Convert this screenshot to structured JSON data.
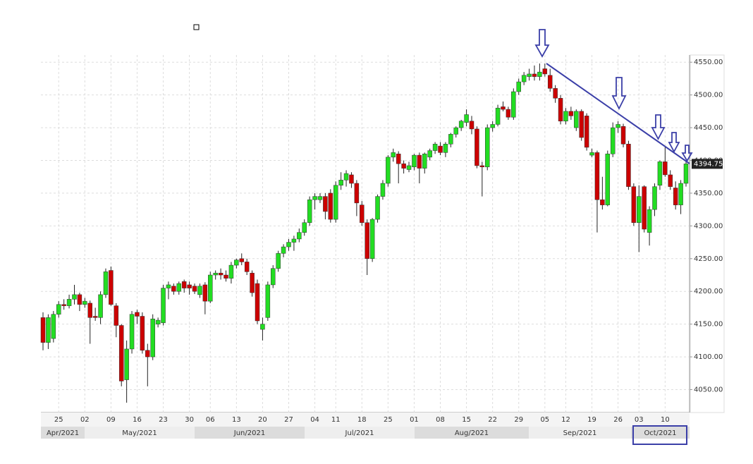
{
  "chart_data": {
    "type": "candlestick",
    "categories": [
      null,
      null,
      null,
      "25",
      null,
      null,
      null,
      null,
      "02",
      null,
      null,
      null,
      null,
      "09",
      null,
      null,
      null,
      null,
      "16",
      null,
      null,
      null,
      null,
      "23",
      null,
      null,
      null,
      null,
      "30",
      null,
      null,
      null,
      "06",
      null,
      null,
      null,
      null,
      "13",
      null,
      null,
      null,
      null,
      "20",
      null,
      null,
      null,
      null,
      "27",
      null,
      null,
      null,
      null,
      "04",
      null,
      null,
      null,
      "11",
      null,
      null,
      null,
      null,
      "18",
      null,
      null,
      null,
      null,
      "25",
      null,
      null,
      null,
      null,
      "01",
      null,
      null,
      null,
      null,
      "08",
      null,
      null,
      null,
      null,
      "15",
      null,
      null,
      null,
      null,
      "22",
      null,
      null,
      null,
      null,
      "29",
      null,
      null,
      null,
      null,
      "05",
      null,
      null,
      null,
      "12",
      null,
      null,
      null,
      null,
      "19",
      null,
      null,
      null,
      null,
      "26",
      null,
      null,
      null,
      "03",
      null,
      null,
      null,
      null,
      "10",
      null,
      null,
      null,
      null
    ],
    "months": [
      "Apr/2021",
      "May/2021",
      "Jun/2021",
      "Jul/2021",
      "Aug/2021",
      "Sep/2021",
      "Oct/2021"
    ],
    "ohlc": [
      [
        4160,
        4168,
        4110,
        4122
      ],
      [
        4122,
        4165,
        4112,
        4160
      ],
      [
        4128,
        4170,
        4122,
        4165
      ],
      [
        4165,
        4185,
        4160,
        4180
      ],
      [
        4180,
        4188,
        4172,
        4178
      ],
      [
        4178,
        4195,
        4174,
        4188
      ],
      [
        4188,
        4210,
        4180,
        4195
      ],
      [
        4195,
        4198,
        4170,
        4180
      ],
      [
        4180,
        4190,
        4175,
        4185
      ],
      [
        4182,
        4186,
        4120,
        4160
      ],
      [
        4162,
        4175,
        4155,
        4160
      ],
      [
        4160,
        4200,
        4150,
        4195
      ],
      [
        4195,
        4235,
        4190,
        4230
      ],
      [
        4232,
        4238,
        4178,
        4180
      ],
      [
        4178,
        4182,
        4130,
        4148
      ],
      [
        4148,
        4150,
        4055,
        4063
      ],
      [
        4065,
        4125,
        4030,
        4112
      ],
      [
        4112,
        4170,
        4105,
        4165
      ],
      [
        4168,
        4172,
        4150,
        4162
      ],
      [
        4162,
        4168,
        4105,
        4110
      ],
      [
        4110,
        4120,
        4055,
        4100
      ],
      [
        4100,
        4165,
        4095,
        4158
      ],
      [
        4150,
        4160,
        4145,
        4156
      ],
      [
        4152,
        4210,
        4148,
        4205
      ],
      [
        4205,
        4215,
        4188,
        4210
      ],
      [
        4208,
        4212,
        4195,
        4200
      ],
      [
        4200,
        4215,
        4195,
        4212
      ],
      [
        4215,
        4218,
        4198,
        4205
      ],
      [
        4210,
        4215,
        4195,
        4205
      ],
      [
        4208,
        4212,
        4196,
        4200
      ],
      [
        4195,
        4212,
        4190,
        4208
      ],
      [
        4210,
        4214,
        4165,
        4185
      ],
      [
        4185,
        4230,
        4182,
        4225
      ],
      [
        4225,
        4232,
        4218,
        4228
      ],
      [
        4228,
        4235,
        4218,
        4225
      ],
      [
        4225,
        4232,
        4215,
        4220
      ],
      [
        4220,
        4245,
        4212,
        4240
      ],
      [
        4240,
        4250,
        4235,
        4248
      ],
      [
        4250,
        4258,
        4240,
        4245
      ],
      [
        4245,
        4250,
        4225,
        4230
      ],
      [
        4228,
        4232,
        4192,
        4198
      ],
      [
        4212,
        4218,
        4150,
        4155
      ],
      [
        4142,
        4160,
        4125,
        4150
      ],
      [
        4160,
        4215,
        4155,
        4210
      ],
      [
        4210,
        4240,
        4205,
        4235
      ],
      [
        4235,
        4262,
        4230,
        4258
      ],
      [
        4258,
        4272,
        4252,
        4268
      ],
      [
        4268,
        4280,
        4262,
        4275
      ],
      [
        4275,
        4285,
        4262,
        4280
      ],
      [
        4280,
        4296,
        4275,
        4290
      ],
      [
        4290,
        4310,
        4285,
        4305
      ],
      [
        4305,
        4345,
        4300,
        4340
      ],
      [
        4340,
        4350,
        4325,
        4345
      ],
      [
        4340,
        4350,
        4335,
        4345
      ],
      [
        4345,
        4350,
        4310,
        4322
      ],
      [
        4350,
        4356,
        4305,
        4310
      ],
      [
        4310,
        4368,
        4305,
        4362
      ],
      [
        4362,
        4382,
        4355,
        4370
      ],
      [
        4370,
        4385,
        4360,
        4380
      ],
      [
        4378,
        4382,
        4358,
        4365
      ],
      [
        4365,
        4370,
        4315,
        4335
      ],
      [
        4332,
        4338,
        4300,
        4305
      ],
      [
        4305,
        4310,
        4225,
        4250
      ],
      [
        4250,
        4312,
        4245,
        4310
      ],
      [
        4310,
        4348,
        4305,
        4345
      ],
      [
        4345,
        4370,
        4340,
        4365
      ],
      [
        4365,
        4408,
        4360,
        4405
      ],
      [
        4405,
        4418,
        4398,
        4412
      ],
      [
        4410,
        4414,
        4365,
        4395
      ],
      [
        4395,
        4400,
        4380,
        4388
      ],
      [
        4386,
        4398,
        4382,
        4392
      ],
      [
        4390,
        4410,
        4385,
        4408
      ],
      [
        4408,
        4412,
        4365,
        4388
      ],
      [
        4388,
        4412,
        4380,
        4410
      ],
      [
        4405,
        4418,
        4400,
        4415
      ],
      [
        4415,
        4428,
        4410,
        4425
      ],
      [
        4422,
        4428,
        4408,
        4412
      ],
      [
        4412,
        4428,
        4405,
        4425
      ],
      [
        4425,
        4442,
        4420,
        4440
      ],
      [
        4440,
        4452,
        4435,
        4450
      ],
      [
        4450,
        4462,
        4445,
        4460
      ],
      [
        4458,
        4478,
        4452,
        4470
      ],
      [
        4460,
        4468,
        4440,
        4448
      ],
      [
        4448,
        4452,
        4388,
        4392
      ],
      [
        4392,
        4398,
        4345,
        4390
      ],
      [
        4390,
        4455,
        4385,
        4450
      ],
      [
        4450,
        4460,
        4444,
        4455
      ],
      [
        4455,
        4485,
        4452,
        4480
      ],
      [
        4482,
        4490,
        4475,
        4478
      ],
      [
        4478,
        4482,
        4462,
        4466
      ],
      [
        4466,
        4510,
        4462,
        4505
      ],
      [
        4505,
        4525,
        4500,
        4520
      ],
      [
        4520,
        4535,
        4515,
        4530
      ],
      [
        4528,
        4540,
        4522,
        4532
      ],
      [
        4532,
        4545,
        4522,
        4528
      ],
      [
        4528,
        4548,
        4522,
        4535
      ],
      [
        4540,
        4548,
        4528,
        4532
      ],
      [
        4530,
        4540,
        4505,
        4510
      ],
      [
        4510,
        4515,
        4488,
        4495
      ],
      [
        4495,
        4500,
        4455,
        4460
      ],
      [
        4460,
        4480,
        4455,
        4475
      ],
      [
        4475,
        4482,
        4462,
        4468
      ],
      [
        4450,
        4478,
        4445,
        4475
      ],
      [
        4475,
        4478,
        4430,
        4435
      ],
      [
        4468,
        4472,
        4415,
        4420
      ],
      [
        4408,
        4418,
        4405,
        4412
      ],
      [
        4412,
        4415,
        4290,
        4340
      ],
      [
        4340,
        4375,
        4325,
        4332
      ],
      [
        4332,
        4415,
        4330,
        4410
      ],
      [
        4410,
        4458,
        4405,
        4450
      ],
      [
        4450,
        4460,
        4442,
        4455
      ],
      [
        4452,
        4456,
        4420,
        4425
      ],
      [
        4425,
        4430,
        4355,
        4360
      ],
      [
        4360,
        4365,
        4300,
        4305
      ],
      [
        4305,
        4362,
        4260,
        4345
      ],
      [
        4360,
        4362,
        4290,
        4295
      ],
      [
        4290,
        4330,
        4270,
        4325
      ],
      [
        4325,
        4365,
        4315,
        4360
      ],
      [
        4362,
        4400,
        4355,
        4398
      ],
      [
        4398,
        4420,
        4375,
        4378
      ],
      [
        4378,
        4385,
        4355,
        4360
      ],
      [
        4358,
        4368,
        4325,
        4332
      ],
      [
        4332,
        4370,
        4318,
        4365
      ],
      [
        4365,
        4398,
        4360,
        4394.75
      ]
    ],
    "up_color": "#22dd22",
    "down_color": "#cc0000",
    "ylim": [
      4015,
      4561
    ],
    "yticks": [
      {
        "value": 4050,
        "label": "4050.00"
      },
      {
        "value": 4100,
        "label": "4100.00"
      },
      {
        "value": 4150,
        "label": "4150.00"
      },
      {
        "value": 4200,
        "label": "4200.00"
      },
      {
        "value": 4250,
        "label": "4250.00"
      },
      {
        "value": 4300,
        "label": "4300.00"
      },
      {
        "value": 4350,
        "label": "4350.00"
      },
      {
        "value": 4400,
        "label": "4400.00"
      },
      {
        "value": 4450,
        "label": "4450.00"
      },
      {
        "value": 4500,
        "label": "4500.00"
      },
      {
        "value": 4550,
        "label": "4550.00"
      }
    ],
    "grid": true
  }
}
